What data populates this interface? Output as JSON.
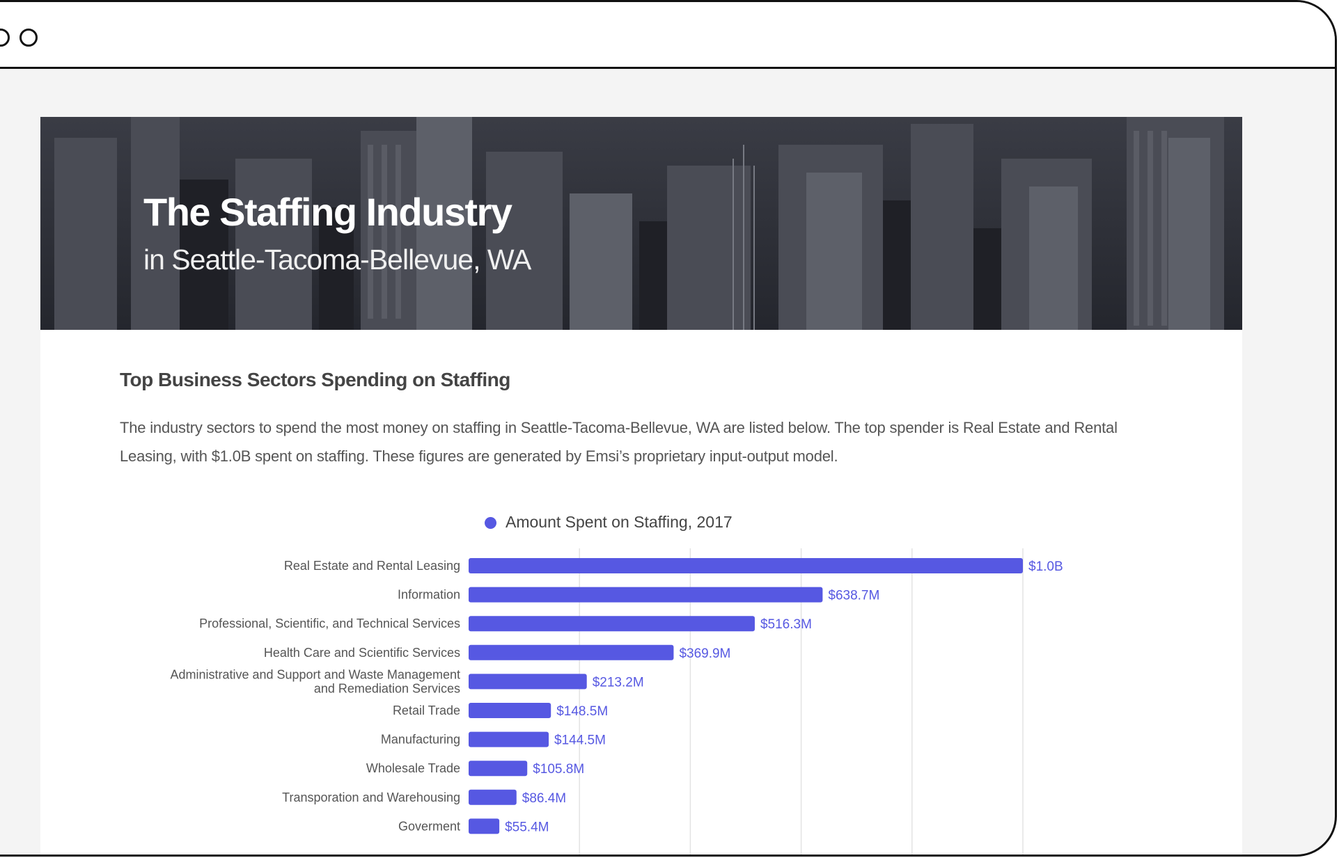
{
  "hero": {
    "title": "The Staffing Industry",
    "subtitle": "in Seattle-Tacoma-Bellevue, WA"
  },
  "section": {
    "title": "Top Business Sectors Spending on Staffing",
    "paragraph": "The industry sectors to spend the most money on staffing in Seattle-Tacoma-Bellevue, WA are listed below. The top spender is Real Estate and Rental Leasing, with $1.0B spent on staffing. These figures are generated by Emsi’s proprietary input-output model."
  },
  "colors": {
    "bar": "#5658e2",
    "bar_label": "#5658e2",
    "grid": "#e3e3e3",
    "category_text": "#555555"
  },
  "chart_data": {
    "type": "bar",
    "orientation": "horizontal",
    "legend": "Amount Spent on Staffing, 2017",
    "legend_position": "top-center",
    "grid": true,
    "xlim": [
      0,
      1000
    ],
    "unit": "$M",
    "series": [
      {
        "name": "Amount Spent on Staffing, 2017",
        "values": [
          1000,
          638.7,
          516.3,
          369.9,
          213.2,
          148.5,
          144.5,
          105.8,
          86.4,
          55.4
        ],
        "labels": [
          "$1.0B",
          "$638.7M",
          "$516.3M",
          "$369.9M",
          "$213.2M",
          "$148.5M",
          "$144.5M",
          "$105.8M",
          "$86.4M",
          "$55.4M"
        ]
      }
    ],
    "categories": [
      "Real Estate and Rental Leasing",
      "Information",
      "Professional, Scientific, and Technical Services",
      "Health Care and Scientific Services",
      "Administrative and Support and Waste Management and Remediation Services",
      "Retail Trade",
      "Manufacturing",
      "Wholesale Trade",
      "Transporation and Warehousing",
      "Goverment"
    ],
    "category_lines": [
      [
        "Real Estate and Rental Leasing"
      ],
      [
        "Information"
      ],
      [
        "Professional, Scientific, and Technical Services"
      ],
      [
        "Health Care and Scientific Services"
      ],
      [
        "Administrative and Support and Waste Management",
        "and Remediation Services"
      ],
      [
        "Retail Trade"
      ],
      [
        "Manufacturing"
      ],
      [
        "Wholesale Trade"
      ],
      [
        "Transporation and Warehousing"
      ],
      [
        "Goverment"
      ]
    ]
  }
}
